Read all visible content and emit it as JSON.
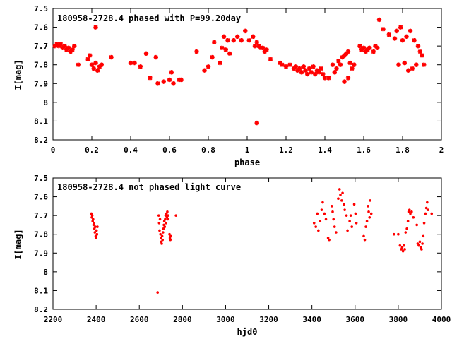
{
  "chart_data": [
    {
      "type": "scatter",
      "title": "180958-2728.4 phased with P=99.20day",
      "xlabel": "phase",
      "ylabel": "I[mag]",
      "xlim": [
        0,
        2
      ],
      "ylim": [
        7.5,
        8.2
      ],
      "y_inverted": true,
      "xticks": [
        "0",
        "0.2",
        "0.4",
        "0.6",
        "0.8",
        "1",
        "1.2",
        "1.4",
        "1.6",
        "1.8",
        "2"
      ],
      "yticks": [
        "7.5",
        "7.6",
        "7.7",
        "7.8",
        "7.9",
        "8",
        "8.1",
        "8.2"
      ],
      "color": "#ff0000",
      "marker": "star",
      "points": [
        [
          0.01,
          7.7
        ],
        [
          0.02,
          7.69
        ],
        [
          0.03,
          7.7
        ],
        [
          0.04,
          7.69
        ],
        [
          0.05,
          7.71
        ],
        [
          0.06,
          7.7
        ],
        [
          0.07,
          7.72
        ],
        [
          0.08,
          7.71
        ],
        [
          0.09,
          7.73
        ],
        [
          0.1,
          7.72
        ],
        [
          0.11,
          7.7
        ],
        [
          0.13,
          7.8
        ],
        [
          0.18,
          7.77
        ],
        [
          0.19,
          7.75
        ],
        [
          0.2,
          7.8
        ],
        [
          0.21,
          7.82
        ],
        [
          0.22,
          7.79
        ],
        [
          0.22,
          7.6
        ],
        [
          0.23,
          7.83
        ],
        [
          0.24,
          7.81
        ],
        [
          0.25,
          7.8
        ],
        [
          0.3,
          7.76
        ],
        [
          0.4,
          7.79
        ],
        [
          0.42,
          7.79
        ],
        [
          0.45,
          7.81
        ],
        [
          0.48,
          7.74
        ],
        [
          0.5,
          7.87
        ],
        [
          0.53,
          7.76
        ],
        [
          0.54,
          7.9
        ],
        [
          0.57,
          7.89
        ],
        [
          0.6,
          7.88
        ],
        [
          0.61,
          7.84
        ],
        [
          0.62,
          7.9
        ],
        [
          0.65,
          7.88
        ],
        [
          0.66,
          7.88
        ],
        [
          0.74,
          7.73
        ],
        [
          0.78,
          7.83
        ],
        [
          0.8,
          7.81
        ],
        [
          0.82,
          7.76
        ],
        [
          0.83,
          7.68
        ],
        [
          0.86,
          7.79
        ],
        [
          0.87,
          7.71
        ],
        [
          0.88,
          7.65
        ],
        [
          0.89,
          7.72
        ],
        [
          0.9,
          7.67
        ],
        [
          0.91,
          7.74
        ],
        [
          0.93,
          7.67
        ],
        [
          0.95,
          7.65
        ],
        [
          0.97,
          7.67
        ],
        [
          0.99,
          7.62
        ],
        [
          1.01,
          7.67
        ],
        [
          1.03,
          7.65
        ],
        [
          1.04,
          7.7
        ],
        [
          1.05,
          7.68
        ],
        [
          1.05,
          8.11
        ],
        [
          1.06,
          7.7
        ],
        [
          1.07,
          7.71
        ],
        [
          1.08,
          7.71
        ],
        [
          1.09,
          7.73
        ],
        [
          1.1,
          7.72
        ],
        [
          1.12,
          7.77
        ],
        [
          1.17,
          7.79
        ],
        [
          1.18,
          7.8
        ],
        [
          1.2,
          7.81
        ],
        [
          1.22,
          7.8
        ],
        [
          1.24,
          7.82
        ],
        [
          1.25,
          7.81
        ],
        [
          1.26,
          7.83
        ],
        [
          1.27,
          7.82
        ],
        [
          1.28,
          7.84
        ],
        [
          1.29,
          7.81
        ],
        [
          1.3,
          7.83
        ],
        [
          1.31,
          7.85
        ],
        [
          1.32,
          7.82
        ],
        [
          1.33,
          7.84
        ],
        [
          1.34,
          7.81
        ],
        [
          1.35,
          7.85
        ],
        [
          1.36,
          7.83
        ],
        [
          1.37,
          7.84
        ],
        [
          1.38,
          7.82
        ],
        [
          1.39,
          7.85
        ],
        [
          1.4,
          7.87
        ],
        [
          1.42,
          7.87
        ],
        [
          1.44,
          7.8
        ],
        [
          1.45,
          7.84
        ],
        [
          1.46,
          7.82
        ],
        [
          1.47,
          7.78
        ],
        [
          1.48,
          7.8
        ],
        [
          1.49,
          7.76
        ],
        [
          1.5,
          7.75
        ],
        [
          1.51,
          7.74
        ],
        [
          1.52,
          7.73
        ],
        [
          1.5,
          7.89
        ],
        [
          1.52,
          7.87
        ],
        [
          1.53,
          7.79
        ],
        [
          1.54,
          7.82
        ],
        [
          1.55,
          7.8
        ],
        [
          1.58,
          7.7
        ],
        [
          1.59,
          7.72
        ],
        [
          1.6,
          7.71
        ],
        [
          1.61,
          7.73
        ],
        [
          1.62,
          7.72
        ],
        [
          1.63,
          7.71
        ],
        [
          1.65,
          7.73
        ],
        [
          1.66,
          7.7
        ],
        [
          1.67,
          7.71
        ],
        [
          1.68,
          7.56
        ],
        [
          1.7,
          7.61
        ],
        [
          1.73,
          7.64
        ],
        [
          1.76,
          7.66
        ],
        [
          1.77,
          7.62
        ],
        [
          1.78,
          7.8
        ],
        [
          1.79,
          7.6
        ],
        [
          1.8,
          7.67
        ],
        [
          1.81,
          7.79
        ],
        [
          1.82,
          7.65
        ],
        [
          1.83,
          7.83
        ],
        [
          1.84,
          7.62
        ],
        [
          1.85,
          7.82
        ],
        [
          1.86,
          7.67
        ],
        [
          1.87,
          7.8
        ],
        [
          1.88,
          7.7
        ],
        [
          1.89,
          7.73
        ],
        [
          1.9,
          7.75
        ],
        [
          1.91,
          7.8
        ]
      ]
    },
    {
      "type": "scatter",
      "title": "180958-2728.4 not phased light curve",
      "xlabel": "hjd0",
      "ylabel": "I[mag]",
      "xlim": [
        2200,
        4000
      ],
      "ylim": [
        7.5,
        8.2
      ],
      "y_inverted": true,
      "xticks": [
        "2200",
        "2400",
        "2600",
        "2800",
        "3000",
        "3200",
        "3400",
        "3600",
        "3800",
        "4000"
      ],
      "yticks": [
        "7.5",
        "7.6",
        "7.7",
        "7.8",
        "7.9",
        "8",
        "8.1",
        "8.2"
      ],
      "color": "#ff0000",
      "marker": "dot",
      "points": [
        [
          2378,
          7.69
        ],
        [
          2380,
          7.71
        ],
        [
          2382,
          7.7
        ],
        [
          2384,
          7.73
        ],
        [
          2386,
          7.72
        ],
        [
          2388,
          7.75
        ],
        [
          2390,
          7.74
        ],
        [
          2392,
          7.77
        ],
        [
          2394,
          7.79
        ],
        [
          2396,
          7.76
        ],
        [
          2398,
          7.81
        ],
        [
          2400,
          7.82
        ],
        [
          2402,
          7.78
        ],
        [
          2404,
          7.8
        ],
        [
          2406,
          7.76
        ],
        [
          2685,
          8.11
        ],
        [
          2690,
          7.7
        ],
        [
          2692,
          7.74
        ],
        [
          2694,
          7.78
        ],
        [
          2696,
          7.72
        ],
        [
          2698,
          7.8
        ],
        [
          2700,
          7.82
        ],
        [
          2702,
          7.84
        ],
        [
          2704,
          7.85
        ],
        [
          2706,
          7.81
        ],
        [
          2708,
          7.83
        ],
        [
          2710,
          7.79
        ],
        [
          2712,
          7.77
        ],
        [
          2714,
          7.75
        ],
        [
          2716,
          7.73
        ],
        [
          2718,
          7.76
        ],
        [
          2720,
          7.72
        ],
        [
          2722,
          7.7
        ],
        [
          2724,
          7.74
        ],
        [
          2726,
          7.69
        ],
        [
          2728,
          7.71
        ],
        [
          2730,
          7.68
        ],
        [
          2732,
          7.72
        ],
        [
          2734,
          7.7
        ],
        [
          2740,
          7.8
        ],
        [
          2742,
          7.82
        ],
        [
          2744,
          7.83
        ],
        [
          2746,
          7.81
        ],
        [
          2770,
          7.7
        ],
        [
          3410,
          7.74
        ],
        [
          3418,
          7.76
        ],
        [
          3425,
          7.69
        ],
        [
          3430,
          7.78
        ],
        [
          3438,
          7.73
        ],
        [
          3445,
          7.67
        ],
        [
          3450,
          7.63
        ],
        [
          3458,
          7.69
        ],
        [
          3465,
          7.72
        ],
        [
          3475,
          7.82
        ],
        [
          3480,
          7.83
        ],
        [
          3492,
          7.65
        ],
        [
          3496,
          7.68
        ],
        [
          3500,
          7.72
        ],
        [
          3505,
          7.76
        ],
        [
          3512,
          7.79
        ],
        [
          3522,
          7.61
        ],
        [
          3528,
          7.56
        ],
        [
          3532,
          7.59
        ],
        [
          3538,
          7.62
        ],
        [
          3542,
          7.58
        ],
        [
          3548,
          7.64
        ],
        [
          3552,
          7.67
        ],
        [
          3560,
          7.7
        ],
        [
          3565,
          7.78
        ],
        [
          3575,
          7.73
        ],
        [
          3580,
          7.7
        ],
        [
          3585,
          7.76
        ],
        [
          3596,
          7.64
        ],
        [
          3602,
          7.69
        ],
        [
          3606,
          7.74
        ],
        [
          3640,
          7.81
        ],
        [
          3645,
          7.83
        ],
        [
          3650,
          7.76
        ],
        [
          3655,
          7.73
        ],
        [
          3660,
          7.65
        ],
        [
          3663,
          7.68
        ],
        [
          3667,
          7.71
        ],
        [
          3670,
          7.62
        ],
        [
          3675,
          7.69
        ],
        [
          3780,
          7.8
        ],
        [
          3800,
          7.8
        ],
        [
          3808,
          7.86
        ],
        [
          3814,
          7.88
        ],
        [
          3818,
          7.87
        ],
        [
          3822,
          7.89
        ],
        [
          3826,
          7.86
        ],
        [
          3830,
          7.88
        ],
        [
          3834,
          7.79
        ],
        [
          3840,
          7.77
        ],
        [
          3845,
          7.73
        ],
        [
          3848,
          7.68
        ],
        [
          3852,
          7.67
        ],
        [
          3856,
          7.69
        ],
        [
          3862,
          7.68
        ],
        [
          3870,
          7.71
        ],
        [
          3886,
          7.75
        ],
        [
          3890,
          7.85
        ],
        [
          3895,
          7.86
        ],
        [
          3900,
          7.84
        ],
        [
          3904,
          7.87
        ],
        [
          3908,
          7.88
        ],
        [
          3912,
          7.85
        ],
        [
          3916,
          7.81
        ],
        [
          3920,
          7.74
        ],
        [
          3926,
          7.69
        ],
        [
          3930,
          7.66
        ],
        [
          3934,
          7.63
        ],
        [
          3938,
          7.67
        ],
        [
          3955,
          7.69
        ]
      ]
    }
  ]
}
